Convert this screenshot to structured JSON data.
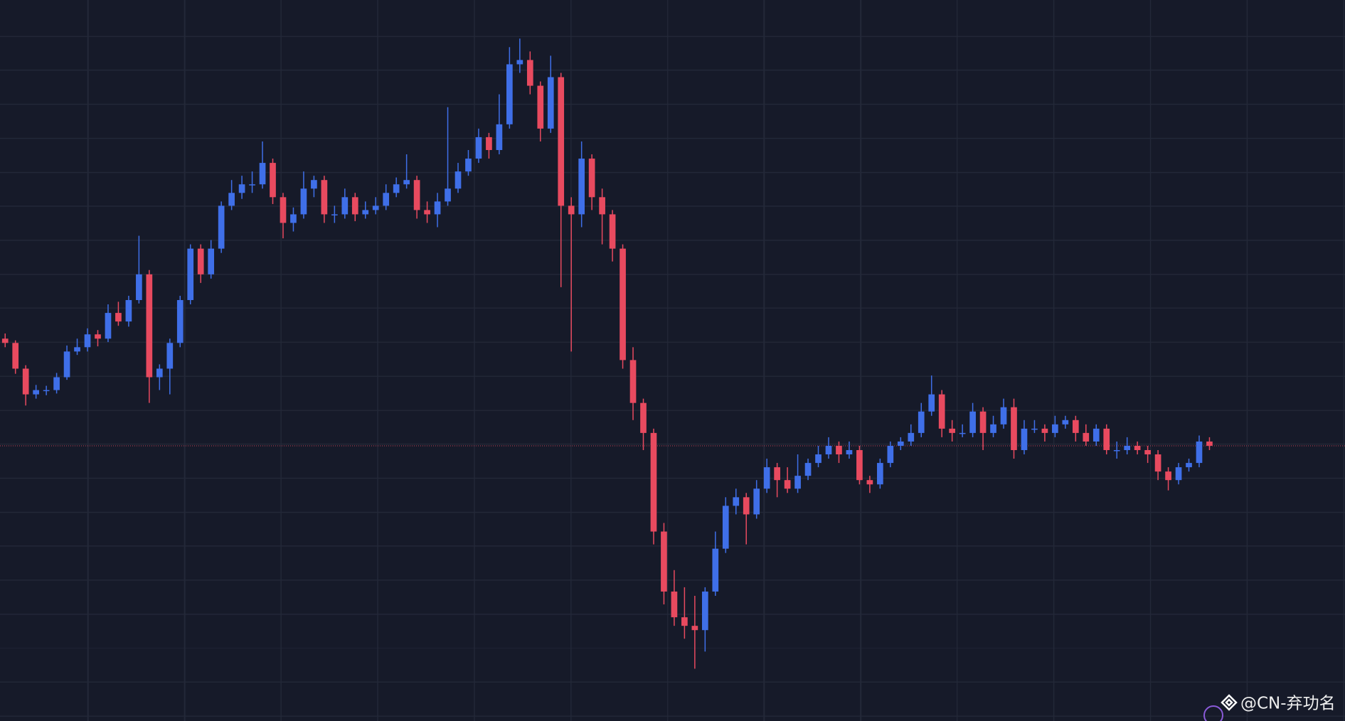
{
  "chart_data": {
    "type": "candlestick",
    "up_color": "#3f6fe8",
    "down_color": "#e84a5f",
    "ylim": [
      0,
      841
    ],
    "watermark": "@CN-弃功名",
    "candles": [
      [
        446,
        452,
        436,
        441
      ],
      [
        441,
        444,
        405,
        411
      ],
      [
        411,
        415,
        368,
        381
      ],
      [
        381,
        392,
        376,
        386
      ],
      [
        386,
        391,
        380,
        386
      ],
      [
        386,
        406,
        382,
        401
      ],
      [
        401,
        438,
        398,
        431
      ],
      [
        431,
        446,
        427,
        436
      ],
      [
        436,
        458,
        431,
        451
      ],
      [
        451,
        456,
        437,
        446
      ],
      [
        446,
        486,
        442,
        476
      ],
      [
        476,
        489,
        461,
        466
      ],
      [
        466,
        496,
        460,
        491
      ],
      [
        491,
        566,
        487,
        521
      ],
      [
        521,
        526,
        371,
        401
      ],
      [
        401,
        416,
        386,
        411
      ],
      [
        411,
        446,
        381,
        441
      ],
      [
        441,
        496,
        436,
        491
      ],
      [
        491,
        556,
        486,
        551
      ],
      [
        551,
        556,
        511,
        521
      ],
      [
        521,
        561,
        516,
        551
      ],
      [
        551,
        606,
        546,
        601
      ],
      [
        601,
        631,
        596,
        616
      ],
      [
        616,
        636,
        609,
        626
      ],
      [
        626,
        641,
        616,
        626
      ],
      [
        626,
        676,
        621,
        651
      ],
      [
        651,
        656,
        603,
        611
      ],
      [
        611,
        616,
        563,
        581
      ],
      [
        581,
        599,
        571,
        591
      ],
      [
        591,
        641,
        586,
        621
      ],
      [
        621,
        636,
        611,
        631
      ],
      [
        631,
        636,
        581,
        591
      ],
      [
        591,
        601,
        581,
        591
      ],
      [
        591,
        621,
        586,
        611
      ],
      [
        611,
        616,
        583,
        591
      ],
      [
        591,
        606,
        586,
        596
      ],
      [
        596,
        611,
        591,
        601
      ],
      [
        601,
        626,
        596,
        616
      ],
      [
        616,
        634,
        611,
        626
      ],
      [
        626,
        661,
        621,
        631
      ],
      [
        631,
        636,
        586,
        596
      ],
      [
        596,
        606,
        581,
        591
      ],
      [
        591,
        616,
        576,
        606
      ],
      [
        606,
        716,
        601,
        621
      ],
      [
        621,
        651,
        616,
        641
      ],
      [
        641,
        666,
        636,
        656
      ],
      [
        656,
        691,
        651,
        681
      ],
      [
        681,
        686,
        656,
        666
      ],
      [
        666,
        731,
        661,
        696
      ],
      [
        696,
        786,
        691,
        766
      ],
      [
        766,
        796,
        756,
        771
      ],
      [
        771,
        781,
        731,
        741
      ],
      [
        741,
        746,
        676,
        691
      ],
      [
        691,
        776,
        686,
        751
      ],
      [
        751,
        756,
        506,
        601
      ],
      [
        601,
        611,
        431,
        591
      ],
      [
        591,
        676,
        576,
        656
      ],
      [
        656,
        661,
        596,
        611
      ],
      [
        611,
        621,
        556,
        591
      ],
      [
        591,
        596,
        536,
        551
      ],
      [
        551,
        556,
        411,
        421
      ],
      [
        421,
        436,
        351,
        371
      ],
      [
        371,
        376,
        316,
        336
      ],
      [
        336,
        341,
        206,
        221
      ],
      [
        221,
        231,
        136,
        151
      ],
      [
        151,
        176,
        111,
        121
      ],
      [
        121,
        156,
        96,
        111
      ],
      [
        111,
        146,
        61,
        106
      ],
      [
        106,
        156,
        81,
        151
      ],
      [
        151,
        221,
        146,
        201
      ],
      [
        201,
        261,
        196,
        251
      ],
      [
        251,
        271,
        241,
        261
      ],
      [
        261,
        266,
        206,
        241
      ],
      [
        241,
        281,
        236,
        271
      ],
      [
        271,
        306,
        266,
        296
      ],
      [
        296,
        301,
        261,
        281
      ],
      [
        281,
        296,
        266,
        271
      ],
      [
        271,
        311,
        266,
        286
      ],
      [
        286,
        306,
        281,
        301
      ],
      [
        301,
        321,
        296,
        311
      ],
      [
        311,
        331,
        306,
        321
      ],
      [
        321,
        326,
        301,
        311
      ],
      [
        311,
        326,
        306,
        316
      ],
      [
        316,
        321,
        276,
        281
      ],
      [
        281,
        286,
        266,
        276
      ],
      [
        276,
        306,
        271,
        301
      ],
      [
        301,
        326,
        296,
        321
      ],
      [
        321,
        331,
        316,
        326
      ],
      [
        326,
        346,
        321,
        336
      ],
      [
        336,
        371,
        331,
        361
      ],
      [
        361,
        403,
        356,
        381
      ],
      [
        381,
        386,
        331,
        341
      ],
      [
        341,
        351,
        326,
        336
      ],
      [
        336,
        346,
        331,
        336
      ],
      [
        336,
        371,
        331,
        361
      ],
      [
        361,
        366,
        316,
        336
      ],
      [
        336,
        356,
        331,
        346
      ],
      [
        346,
        376,
        341,
        366
      ],
      [
        366,
        376,
        306,
        316
      ],
      [
        316,
        351,
        311,
        341
      ],
      [
        341,
        351,
        336,
        341
      ],
      [
        341,
        346,
        326,
        336
      ],
      [
        336,
        356,
        331,
        346
      ],
      [
        346,
        356,
        341,
        351
      ],
      [
        351,
        356,
        326,
        336
      ],
      [
        336,
        346,
        321,
        326
      ],
      [
        326,
        346,
        321,
        341
      ],
      [
        341,
        346,
        311,
        316
      ],
      [
        316,
        326,
        306,
        316
      ],
      [
        316,
        331,
        311,
        321
      ],
      [
        321,
        326,
        311,
        316
      ],
      [
        316,
        321,
        301,
        311
      ],
      [
        311,
        316,
        281,
        291
      ],
      [
        291,
        296,
        269,
        281
      ],
      [
        281,
        301,
        276,
        296
      ],
      [
        296,
        306,
        291,
        301
      ],
      [
        301,
        333,
        296,
        326
      ],
      [
        326,
        331,
        316,
        321
      ]
    ]
  }
}
